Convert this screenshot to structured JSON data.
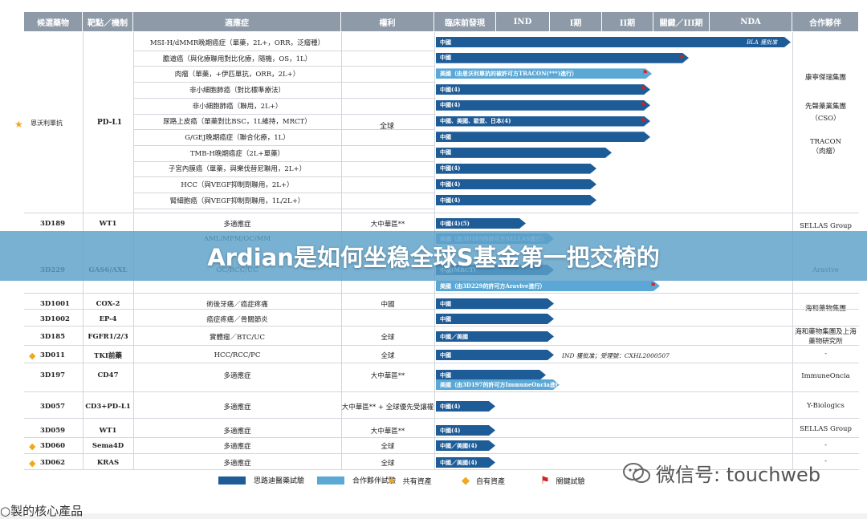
{
  "headers": [
    "候選藥物",
    "靶點／機制",
    "適應症",
    "權利",
    "臨床前發現",
    "IND",
    "I期",
    "II期",
    "關鍵／III期",
    "NDA",
    "合作夥伴"
  ],
  "rows": [
    {
      "candidate": "恩沃利單抗",
      "sup": "(1)(4)",
      "target": "PD-L1",
      "marker": "star",
      "rights": "全球",
      "indications": [
        {
          "text": "MSI-H/dMMR晚期癌症（單藥，2L+，ORR，泛瘤種）",
          "bar": {
            "type": "dark",
            "label": "中國",
            "end": 985,
            "note": "BLA 獲批准"
          },
          "partner": ""
        },
        {
          "text": "膽道癌（與化療聯用對比化療，隨機，OS，1L）",
          "bar": {
            "type": "dark",
            "label": "中國",
            "end": 858,
            "flag": true
          }
        },
        {
          "text": "肉瘤（單藥，+伊匹單抗，ORR，2L+）",
          "bar": {
            "type": "light",
            "label": "美國（由恩沃利單抗的被許可方TRACON(***)進行）",
            "end": 812,
            "flag": true
          }
        },
        {
          "text": "非小細胞肺癌（對比標準療法）",
          "bar": {
            "type": "dark",
            "label": "中國(4)",
            "end": 810,
            "flag": true
          }
        },
        {
          "text": "非小細胞肺癌（聯用，2L+）",
          "bar": {
            "type": "dark",
            "label": "中國(4)",
            "end": 810,
            "flag": true
          }
        },
        {
          "text": "尿路上皮癌（單藥對比BSC，1L維持，MRCT）",
          "bar": {
            "type": "dark",
            "label": "中國、美國、歐盟、日本(4)",
            "end": 810,
            "flag": true
          }
        },
        {
          "text": "G/GEJ晚期癌症（聯合化療，1L）",
          "bar": {
            "type": "dark",
            "label": "中國",
            "end": 810
          }
        },
        {
          "text": "TMB-H晚期癌症（2L+單藥）",
          "bar": {
            "type": "dark",
            "label": "中國",
            "end": 762
          }
        },
        {
          "text": "子宮內膜癌（單藥，與樂伐替尼聯用，2L+）",
          "bar": {
            "type": "dark",
            "label": "中國(4)",
            "end": 743
          }
        },
        {
          "text": "HCC（與VEGF抑制劑聯用，2L+）",
          "bar": {
            "type": "dark",
            "label": "中國(4)",
            "end": 743
          }
        },
        {
          "text": "腎細胞癌（與VEGF抑制劑聯用，1L/2L+）",
          "bar": {
            "type": "dark",
            "label": "中國(4)",
            "end": 743
          }
        }
      ]
    }
  ],
  "partners": [
    "康寧傑瑞集團",
    "先聲藥業集團（CSO）",
    "TRACON（肉瘤）",
    "SELLAS Group",
    "Aravive",
    "海和藥物集團",
    "海和藥物集團及上海藥物研究所",
    "-",
    "ImmuneOncia",
    "Y-Biologics",
    "SELLAS Group",
    "-",
    "-"
  ],
  "small_rows": [
    {
      "candidate": "3D189",
      "sup": "(2)",
      "target": "WT1",
      "indication": "多適應症",
      "rights": "大中華區**",
      "bar_label": "中國(4)(5)",
      "bar_end": 655
    },
    {
      "candidate": "",
      "sup": "",
      "target": "",
      "indication": "AML/MPM/OC/MM",
      "rights": "",
      "bar_label": "美國（由3D189的許可方SELLAS進行）",
      "bar_end": 690,
      "light": true
    },
    {
      "candidate": "3D229",
      "sup": "(3)",
      "target": "GAS6/AXL",
      "indication": "OC/RCC/UC",
      "rights": "",
      "bar_label": "中國(MRCT)",
      "bar_end": 690
    },
    {
      "candidate": "",
      "sup": "",
      "target": "",
      "indication": "",
      "rights": "",
      "bar_label": "美國（由3D229的許可方Aravive進行）",
      "bar_end": 822,
      "light": true,
      "flag": true
    },
    {
      "candidate": "3D1001",
      "sup": "(4)",
      "target": "COX-2",
      "indication": "術後牙痛／癌症疼痛",
      "rights": "中國",
      "bar_label": "中國",
      "bar_end": 690
    },
    {
      "candidate": "3D1002",
      "sup": "(5)",
      "target": "EP-4",
      "indication": "癌症疼痛／骨關節炎",
      "rights": "",
      "bar_label": "中國",
      "bar_end": 690
    },
    {
      "candidate": "3D185",
      "sup": "(6)",
      "target": "FGFR1/2/3",
      "indication": "實體瘤／BTC/UC",
      "rights": "全球",
      "bar_label": "中國／美國",
      "bar_end": 690
    },
    {
      "candidate": "3D011",
      "sup": "",
      "target": "TKI前藥",
      "indication": "HCC/RCC/PC",
      "rights": "全球",
      "bar_label": "中國",
      "bar_end": 690,
      "marker": "diamond",
      "note": "IND 獲批准；受理號：CXHL2000507"
    },
    {
      "candidate": "3D197",
      "sup": "(7)",
      "target": "CD47",
      "indication": "多適應症",
      "rights": "大中華區**",
      "bar_label": "中國",
      "bar_end": 680
    },
    {
      "candidate": "",
      "sup": "",
      "target": "",
      "indication": "",
      "rights": "",
      "bar_label": "美國（由3D197的許可方ImmuneOncia進行）",
      "bar_end": 697,
      "light": true
    },
    {
      "candidate": "3D057",
      "sup": "(8)",
      "target": "CD3+PD-L1",
      "indication": "多適應症",
      "rights": "大中華區** + 全球優先受讓權",
      "bar_label": "中國(4)",
      "bar_end": 617
    },
    {
      "candidate": "3D059",
      "sup": "(9)",
      "target": "WT1",
      "indication": "多適應症",
      "rights": "大中華區**",
      "bar_label": "中國(4)",
      "bar_end": 617
    },
    {
      "candidate": "3D060",
      "sup": "",
      "target": "Sema4D",
      "indication": "多適應症",
      "rights": "全球",
      "bar_label": "中國／美國(4)",
      "bar_end": 617,
      "marker": "diamond"
    },
    {
      "candidate": "3D062",
      "sup": "",
      "target": "KRAS",
      "indication": "多適應症",
      "rights": "全球",
      "bar_label": "中國／美國(4)",
      "bar_end": 617,
      "marker": "diamond"
    }
  ],
  "legend": [
    "思路迪醫藥試驗",
    "合作夥伴試驗",
    "共有資產",
    "自有資產",
    "關鍵試驗"
  ],
  "banner_title": "Ardian是如何坐稳全球S基金第一把交椅的",
  "watermark": "微信号: touchweb",
  "bottom_text": "○製的核心產品",
  "colors": {
    "dark": "#1e5c98",
    "light": "#5ba8d6",
    "header": "#8e9aa8",
    "banner": "#5ca0c8"
  }
}
